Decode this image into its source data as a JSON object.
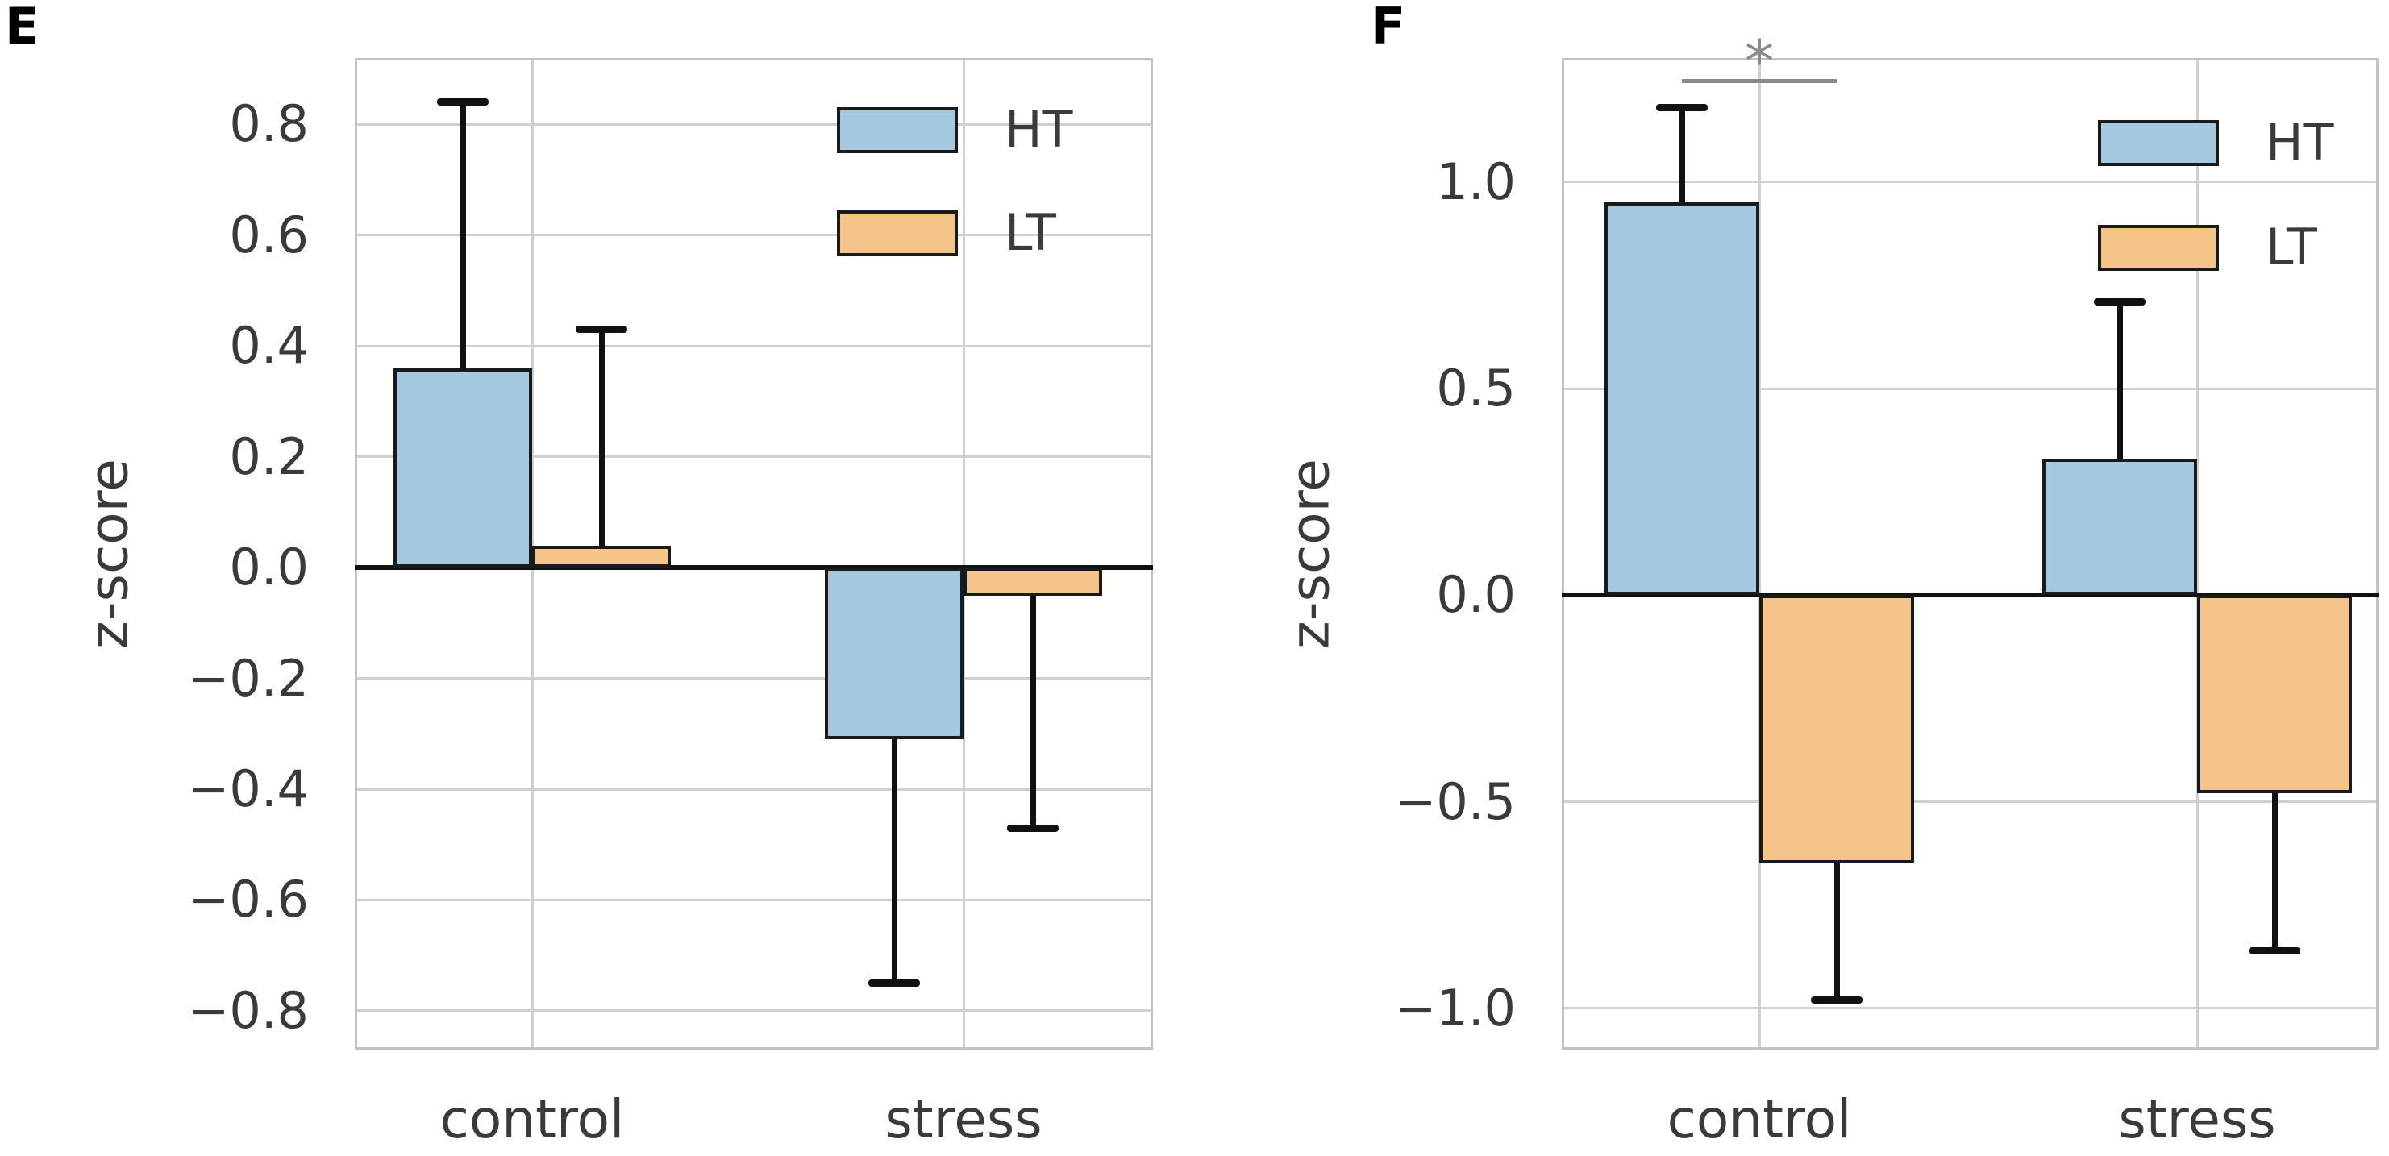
{
  "figure_background": "#ffffff",
  "chart_data": [
    {
      "panel": "E",
      "type": "bar",
      "title": "",
      "xlabel": "",
      "ylabel": "z-score",
      "categories": [
        "control",
        "stress"
      ],
      "series": [
        {
          "name": "HT",
          "color": "#a6c9e2",
          "values": [
            0.36,
            -0.31
          ],
          "error_to": [
            0.84,
            -0.75
          ]
        },
        {
          "name": "LT",
          "color": "#f5c488",
          "values": [
            0.04,
            -0.05
          ],
          "error_to": [
            0.43,
            -0.47
          ]
        }
      ],
      "ylim": [
        -0.87,
        0.92
      ],
      "yticks": [
        0.8,
        0.6,
        0.4,
        0.2,
        0.0,
        -0.2,
        -0.4,
        -0.6,
        -0.8
      ],
      "grid": true,
      "legend_position": "upper right",
      "legend_entries": [
        "HT",
        "LT"
      ],
      "bar_edge_color": "#1a1a1a",
      "error_bar_color": "#111111",
      "zero_line": true
    },
    {
      "panel": "F",
      "type": "bar",
      "title": "",
      "xlabel": "",
      "ylabel": "z-score",
      "categories": [
        "control",
        "stress"
      ],
      "series": [
        {
          "name": "HT",
          "color": "#a6c9e2",
          "values": [
            0.95,
            0.33
          ],
          "error_to": [
            1.18,
            0.71
          ]
        },
        {
          "name": "LT",
          "color": "#f5c488",
          "values": [
            -0.65,
            -0.48
          ],
          "error_to": [
            -0.98,
            -0.86
          ]
        }
      ],
      "ylim": [
        -1.1,
        1.3
      ],
      "yticks": [
        1.0,
        0.5,
        0.0,
        -0.5,
        -1.0
      ],
      "grid": true,
      "legend_position": "upper right",
      "legend_entries": [
        "HT",
        "LT"
      ],
      "bar_edge_color": "#1a1a1a",
      "error_bar_color": "#111111",
      "zero_line": true,
      "significance": {
        "label": "*",
        "category": "control",
        "between": [
          "HT",
          "LT"
        ],
        "y": 1.25,
        "color": "#8a8a8a"
      }
    }
  ]
}
